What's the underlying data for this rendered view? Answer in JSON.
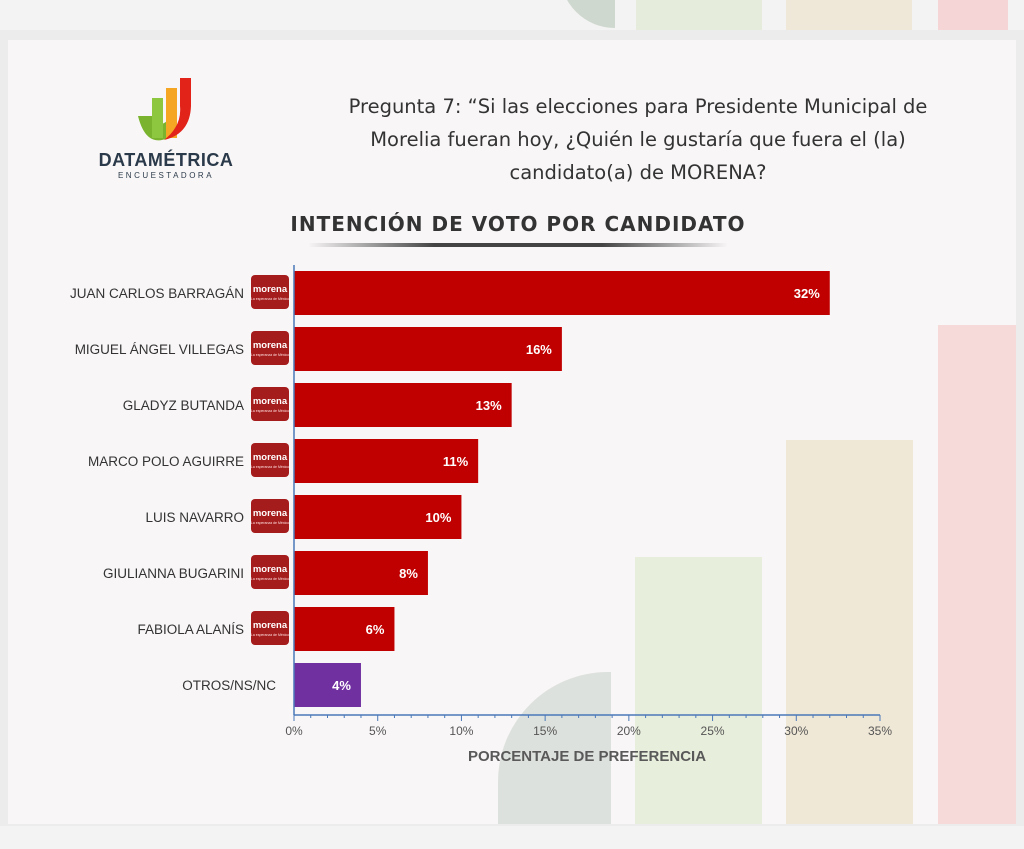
{
  "logo": {
    "name": "DATAMÉTRICA",
    "tagline": "ENCUESTADORA"
  },
  "question": {
    "line1": "Pregunta 7: “Si las elecciones para Presidente Municipal de",
    "line2": "Morelia fueran hoy, ¿Quién le gustaría que fuera el (la)",
    "line3": "candidato(a) de MORENA?"
  },
  "party_badge": {
    "label": "morena",
    "subtitle": "La esperanza de México"
  },
  "colors": {
    "bar": "#c00000",
    "other_bar": "#7030a0",
    "axis": "#4a78b8"
  },
  "chart_data": {
    "type": "bar",
    "orientation": "horizontal",
    "title": "INTENCIÓN DE VOTO POR CANDIDATO",
    "xlabel": "PORCENTAJE DE PREFERENCIA",
    "xlim": [
      0,
      35
    ],
    "x_ticks": [
      "0%",
      "5%",
      "10%",
      "15%",
      "20%",
      "25%",
      "30%",
      "35%"
    ],
    "categories": [
      "JUAN CARLOS BARRAGÁN",
      "MIGUEL ÁNGEL VILLEGAS",
      "GLADYZ BUTANDA",
      "MARCO POLO AGUIRRE",
      "LUIS NAVARRO",
      "GIULIANNA BUGARINI",
      "FABIOLA ALANÍS",
      "OTROS/NS/NC"
    ],
    "values": [
      32,
      16,
      13,
      11,
      10,
      8,
      6,
      4
    ],
    "data_labels": [
      "32%",
      "16%",
      "13%",
      "11%",
      "10%",
      "8%",
      "6%",
      "4%"
    ],
    "party_badges": [
      true,
      true,
      true,
      true,
      true,
      true,
      true,
      false
    ]
  }
}
